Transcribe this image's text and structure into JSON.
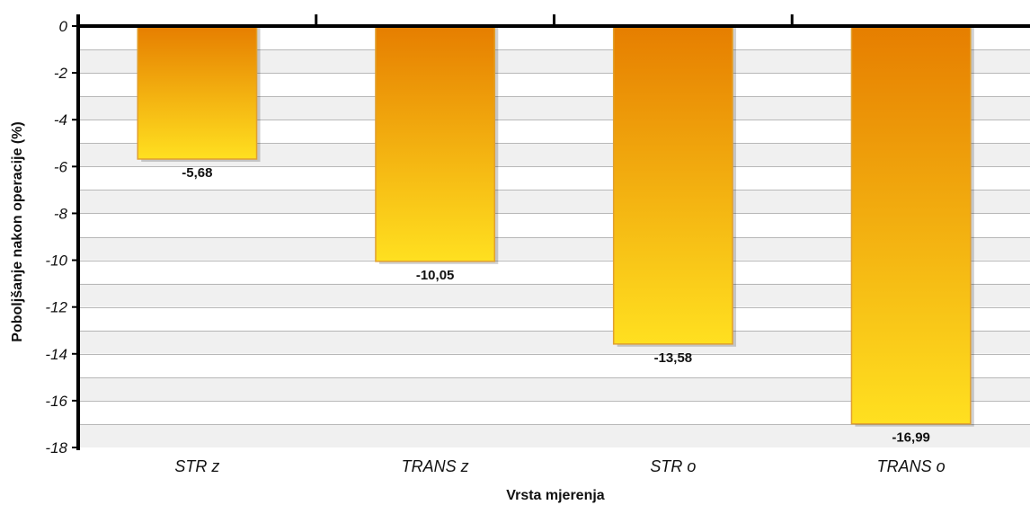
{
  "chart_data": {
    "type": "bar",
    "title": "",
    "xlabel": "Vrsta mjerenja",
    "ylabel": "Poboljšanje nakon operacije (%)",
    "categories": [
      "STR z",
      "TRANS z",
      "STR o",
      "TRANS o"
    ],
    "values": [
      -5.68,
      -10.05,
      -13.58,
      -16.99
    ],
    "value_labels": [
      "-5,68",
      "-10,05",
      "-13,58",
      "-16,99"
    ],
    "ylim": [
      -18,
      0
    ],
    "yticks": [
      0,
      -2,
      -4,
      -6,
      -8,
      -10,
      -12,
      -14,
      -16,
      -18
    ],
    "grid": true,
    "legend": "none",
    "colors": {
      "bar_top": "#E67E00",
      "bar_bottom": "#FFE020",
      "bar_edge": "#E0A030",
      "band_light": "#F0F0F0",
      "band_white": "#FFFFFF",
      "gridline": "#B8B8B8",
      "axis": "#000000"
    }
  }
}
